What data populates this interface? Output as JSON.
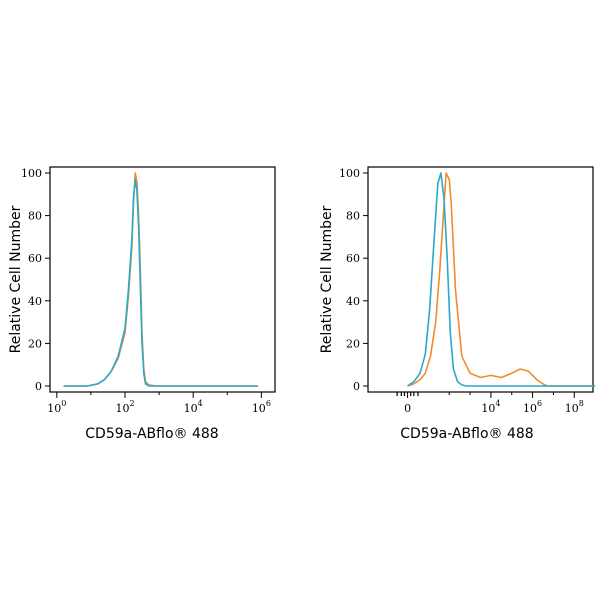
{
  "colors": {
    "isotype": "#2aa9c9",
    "stained": "#f08c2a",
    "axis": "#000000"
  },
  "chart_data": [
    {
      "type": "line",
      "xlabel": "CD59a-ABflo® 488",
      "ylabel": "Relative Cell Number",
      "xscale": "log",
      "xtick_labels": [
        {
          "base": "10",
          "exp": "0"
        },
        {
          "base": "10",
          "exp": "2"
        },
        {
          "base": "10",
          "exp": "4"
        },
        {
          "base": "10",
          "exp": "6"
        }
      ],
      "ytick_labels": [
        "0",
        "20",
        "40",
        "60",
        "80",
        "100"
      ],
      "ylim": [
        0,
        100
      ],
      "series": [
        {
          "color": "#f08c2a",
          "x": [
            0.8,
            1.5,
            1.8,
            2.0,
            2.2,
            2.4,
            2.6,
            2.7,
            2.8,
            2.85,
            2.9,
            2.95,
            3.0,
            3.05,
            3.1,
            3.15,
            3.2,
            3.3,
            3.5,
            4.0,
            6.5
          ],
          "y": [
            0,
            0,
            1,
            3,
            7,
            13,
            25,
            42,
            65,
            86,
            100,
            96,
            80,
            55,
            25,
            8,
            2,
            0.5,
            0,
            0,
            0
          ]
        },
        {
          "color": "#2aa9c9",
          "x": [
            0.8,
            1.5,
            1.8,
            2.0,
            2.2,
            2.4,
            2.6,
            2.7,
            2.8,
            2.85,
            2.9,
            2.95,
            3.0,
            3.05,
            3.1,
            3.15,
            3.2,
            3.3,
            3.5,
            4.0,
            6.5
          ],
          "y": [
            0,
            0,
            1,
            3,
            7,
            14,
            27,
            45,
            68,
            88,
            97,
            92,
            75,
            48,
            20,
            6,
            1,
            0,
            0,
            0,
            0
          ]
        }
      ]
    },
    {
      "type": "line",
      "xlabel": "CD59a-ABflo® 488",
      "ylabel": "Relative Cell Number",
      "xscale": "biexponential",
      "xtick_labels": [
        {
          "base": "0",
          "exp": ""
        },
        {
          "base": "10",
          "exp": "4"
        },
        {
          "base": "10",
          "exp": "6"
        },
        {
          "base": "10",
          "exp": "8"
        }
      ],
      "ytick_labels": [
        "0",
        "20",
        "40",
        "60",
        "80",
        "100"
      ],
      "ylim": [
        0,
        100
      ],
      "series": [
        {
          "color": "#f08c2a",
          "x": [
            0.0,
            0.3,
            0.6,
            0.85,
            1.1,
            1.35,
            1.55,
            1.75,
            1.85,
            2.0,
            2.1,
            2.3,
            2.6,
            3.0,
            3.5,
            4.0,
            4.5,
            5.0,
            5.4,
            5.8,
            6.2,
            6.5,
            6.7,
            7.5,
            9.0
          ],
          "y": [
            0,
            1,
            3,
            6,
            14,
            30,
            55,
            85,
            100,
            97,
            85,
            45,
            14,
            6,
            4,
            5,
            4,
            6,
            8,
            7,
            3,
            1,
            0,
            0,
            0
          ]
        },
        {
          "color": "#2aa9c9",
          "x": [
            0.0,
            0.3,
            0.6,
            0.85,
            1.05,
            1.25,
            1.45,
            1.6,
            1.75,
            1.9,
            2.05,
            2.2,
            2.4,
            2.6,
            2.8,
            3.2,
            9.0
          ],
          "y": [
            0,
            2,
            6,
            15,
            35,
            65,
            95,
            100,
            88,
            60,
            25,
            8,
            2,
            0.5,
            0,
            0,
            0
          ]
        }
      ]
    }
  ]
}
